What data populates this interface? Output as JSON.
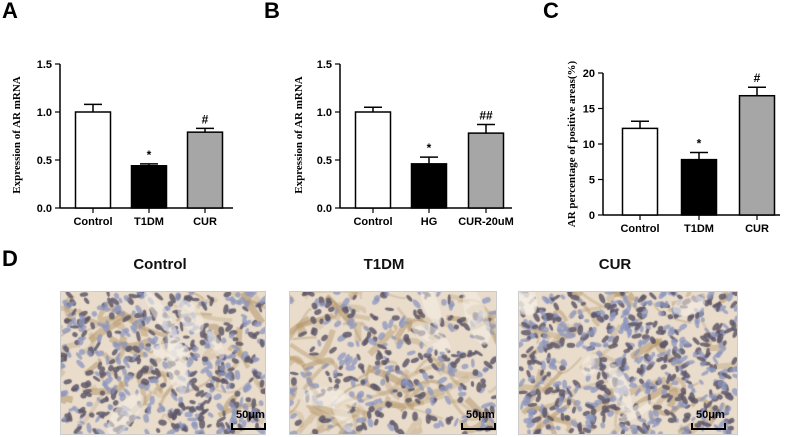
{
  "panel_letters": {
    "a": "A",
    "b": "B",
    "c": "C",
    "d": "D"
  },
  "chart_data": [
    {
      "type": "bar",
      "panel": "A",
      "categories": [
        "Control",
        "T1DM",
        "CUR"
      ],
      "values": [
        1.0,
        0.44,
        0.79
      ],
      "errors": [
        0.08,
        0.02,
        0.04
      ],
      "bar_colors": [
        "#ffffff",
        "#000000",
        "#a6a6a6"
      ],
      "significance": [
        "",
        "*",
        "#"
      ],
      "ylabel": "Expression of AR mRNA",
      "ylim": [
        0,
        1.5
      ],
      "yticks": [
        "0.0",
        "0.5",
        "1.0",
        "1.5"
      ]
    },
    {
      "type": "bar",
      "panel": "B",
      "categories": [
        "Control",
        "HG",
        "CUR-20uM"
      ],
      "values": [
        1.0,
        0.46,
        0.78
      ],
      "errors": [
        0.05,
        0.07,
        0.09
      ],
      "bar_colors": [
        "#ffffff",
        "#000000",
        "#a6a6a6"
      ],
      "significance": [
        "",
        "*",
        "##"
      ],
      "ylabel": "Expression of AR mRNA",
      "ylim": [
        0,
        1.5
      ],
      "yticks": [
        "0.0",
        "0.5",
        "1.0",
        "1.5"
      ]
    },
    {
      "type": "bar",
      "panel": "C",
      "categories": [
        "Control",
        "T1DM",
        "CUR"
      ],
      "values": [
        12.2,
        7.8,
        16.8
      ],
      "errors": [
        1.0,
        1.0,
        1.2
      ],
      "bar_colors": [
        "#ffffff",
        "#000000",
        "#a6a6a6"
      ],
      "significance": [
        "",
        "*",
        "#"
      ],
      "ylabel": "AR percentage of  positive areas(%)",
      "ylim": [
        0,
        20
      ],
      "yticks": [
        "0",
        "5",
        "10",
        "15",
        "20"
      ]
    }
  ],
  "images": {
    "titles": [
      "Control",
      "T1DM",
      "CUR"
    ],
    "scale_label": "50μm"
  },
  "colors": {
    "tissue_background": "#e9dccb",
    "nucleus": "#6f6a78",
    "stain": "#b79a6e"
  }
}
